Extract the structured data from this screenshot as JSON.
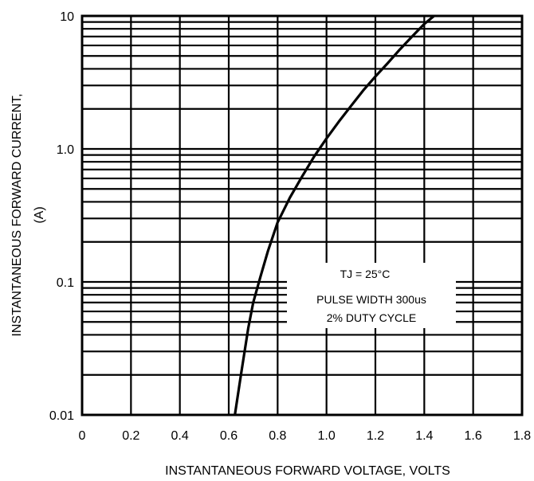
{
  "chart_data": {
    "type": "line",
    "xlabel": "INSTANTANEOUS FORWARD VOLTAGE, VOLTS",
    "ylabel_line1": "INSTANTANEOUS FORWARD CURRENT,",
    "ylabel_line2": "(A)",
    "xlim": [
      0,
      1.8
    ],
    "ylim": [
      0.01,
      10
    ],
    "yscale": "log",
    "x_ticks": [
      0,
      0.2,
      0.4,
      0.6,
      0.8,
      1.0,
      1.2,
      1.4,
      1.6,
      1.8
    ],
    "x_tick_labels": [
      "0",
      "0.2",
      "0.4",
      "0.6",
      "0.8",
      "1.0",
      "1.2",
      "1.4",
      "1.6",
      "1.8"
    ],
    "y_ticks": [
      0.01,
      0.1,
      1,
      10
    ],
    "y_tick_labels": [
      "0.01",
      "0.1",
      "1.0",
      "10"
    ],
    "grid": true,
    "annotations": [
      "TJ = 25°C",
      "PULSE WIDTH 300us",
      "2% DUTY CYCLE"
    ],
    "series": [
      {
        "x": [
          0.625,
          0.65,
          0.68,
          0.7,
          0.73,
          0.76,
          0.8,
          0.85,
          0.9,
          0.95,
          1.0,
          1.05,
          1.1,
          1.15,
          1.2,
          1.25,
          1.3,
          1.35,
          1.4,
          1.44
        ],
        "y": [
          0.01,
          0.02,
          0.045,
          0.07,
          0.11,
          0.17,
          0.28,
          0.43,
          0.62,
          0.88,
          1.2,
          1.6,
          2.1,
          2.75,
          3.5,
          4.4,
          5.6,
          7.0,
          8.7,
          10
        ]
      }
    ]
  }
}
